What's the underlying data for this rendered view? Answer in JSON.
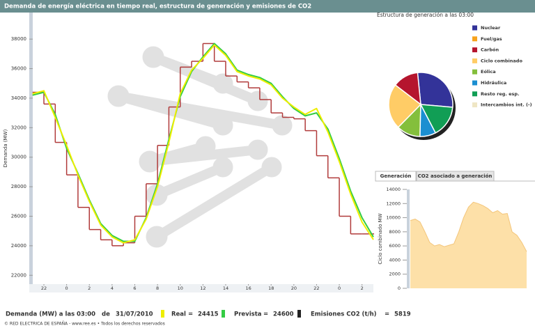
{
  "header": {
    "title": "Demanda de energía eléctrica en tiempo real, estructura de generación y emisiones de CO2"
  },
  "chart_data": [
    {
      "type": "line",
      "y_label": "Demanda (MW)",
      "x": [
        -3,
        -2,
        -1,
        0,
        1,
        2,
        3,
        4,
        5,
        6,
        7,
        8,
        9,
        10,
        11,
        12,
        13,
        14,
        15,
        16,
        17,
        18,
        19,
        20,
        21,
        22,
        23,
        24,
        25,
        26,
        27
      ],
      "xlim": [
        -3,
        27
      ],
      "xticks": [
        {
          "value": -2,
          "label": "22"
        },
        0,
        2,
        4,
        6,
        8,
        10,
        12,
        14,
        16,
        18,
        20,
        22,
        {
          "value": 24,
          "label": "0"
        },
        {
          "value": 26,
          "label": "2"
        }
      ],
      "ylim": [
        21400,
        39800
      ],
      "yticks": [
        22000,
        24000,
        26000,
        28000,
        30000,
        32000,
        34000,
        36000,
        38000
      ],
      "grid": false,
      "series": [
        {
          "color": "#b03a3a",
          "step": true,
          "values": [
            34400,
            33600,
            31000,
            28800,
            26600,
            25100,
            24400,
            24000,
            24200,
            26000,
            28200,
            30800,
            33400,
            36100,
            36500,
            37700,
            36500,
            35500,
            35100,
            34700,
            33900,
            33000,
            32700,
            32600,
            31800,
            30100,
            28600,
            26000,
            24800,
            24800,
            24800
          ]
        },
        {
          "name": "Prevista",
          "color": "#33cc44",
          "values": [
            34200,
            34400,
            32900,
            30600,
            28900,
            27100,
            25500,
            24700,
            24300,
            24300,
            25900,
            28200,
            31200,
            34100,
            35800,
            36800,
            37700,
            37000,
            35900,
            35600,
            35400,
            35000,
            34100,
            33300,
            32800,
            33000,
            31900,
            29900,
            27700,
            25900,
            24600
          ]
        },
        {
          "name": "Real",
          "color": "#eeee00",
          "values": [
            34300,
            34500,
            32700,
            30800,
            28800,
            27000,
            25400,
            24600,
            24200,
            24400,
            25800,
            28000,
            31000,
            34300,
            35900,
            36700,
            37600,
            36900,
            35800,
            35500,
            35300,
            34900,
            34000,
            33400,
            32900,
            33300,
            31700,
            29700,
            27500,
            25600,
            24415
          ]
        }
      ]
    },
    {
      "type": "pie",
      "title": "Estructura de generación a las 03:00",
      "categories": [
        "Nuclear",
        "Fuel/gas",
        "Carbón",
        "Ciclo combinado",
        "Eólica",
        "Hidráulica",
        "Resto reg. esp.",
        "Intercambios int. (-)"
      ],
      "values": [
        28,
        0,
        13,
        23,
        12,
        8,
        16,
        0
      ],
      "colors": [
        "#333399",
        "#f7a31c",
        "#b5152e",
        "#ffcc66",
        "#84bf3c",
        "#1b8fd1",
        "#119e55",
        "#efe6c4"
      ]
    },
    {
      "type": "area",
      "tabs": [
        "Generación",
        "CO2 asociado a generación"
      ],
      "y_label": "Ciclo combinado MW",
      "color": "#fde0a8",
      "line_color": "#f3c57a",
      "values": [
        9600,
        9800,
        9400,
        8000,
        6500,
        6000,
        6200,
        5900,
        6100,
        6300,
        8000,
        10000,
        11500,
        12200,
        12000,
        11700,
        11300,
        10700,
        11000,
        10500,
        10600,
        8000,
        7500,
        6500,
        5200
      ],
      "ylim": [
        0,
        14000
      ],
      "yticks": [
        0,
        2000,
        4000,
        6000,
        8000,
        10000,
        12000,
        14000
      ]
    }
  ],
  "info": {
    "label": "Demanda (MW) a las",
    "time": "03:00",
    "de": "de",
    "date": "31/07/2010",
    "eq": "=",
    "co2_label": "Emisiones CO2 (t/h)",
    "co2": 5819
  },
  "footer": {
    "text": "© RED ELECTRICA DE ESPAÑA - www.ree.es • Todos los derechos reservados"
  }
}
